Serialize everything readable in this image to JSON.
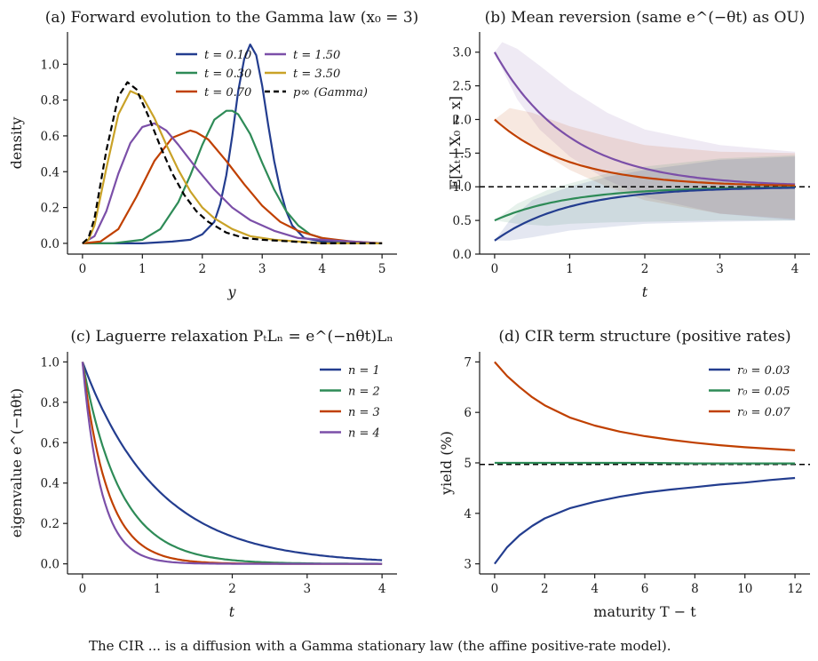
{
  "figure": {
    "caption": "The CIR ... is a diffusion with a Gamma stationary law (the affine positive-rate model)."
  },
  "chart_data": [
    {
      "id": "a",
      "type": "line",
      "title": "(a) Forward evolution to the Gamma law (x₀ = 3)",
      "xlabel": "y",
      "ylabel": "density",
      "xlim": [
        -0.25,
        5.25
      ],
      "ylim": [
        -0.06,
        1.18
      ],
      "xticks": [
        0,
        1,
        2,
        3,
        4,
        5
      ],
      "yticks": [
        0.0,
        0.2,
        0.4,
        0.6,
        0.8,
        1.0
      ],
      "xtick_labels": [
        "0",
        "1",
        "2",
        "3",
        "4",
        "5"
      ],
      "ytick_labels": [
        "0.0",
        "0.2",
        "0.4",
        "0.6",
        "0.8",
        "1.0"
      ],
      "grid": false,
      "legend_position": "top-right",
      "series": [
        {
          "name": "t = 0.10",
          "color": "#233d8f",
          "style": "solid",
          "x": [
            0,
            1,
            1.5,
            1.8,
            2.0,
            2.2,
            2.3,
            2.4,
            2.5,
            2.6,
            2.7,
            2.8,
            2.9,
            3.0,
            3.1,
            3.2,
            3.3,
            3.4,
            3.5,
            3.7,
            4.0,
            4.5,
            5.0
          ],
          "y": [
            0,
            0,
            0.01,
            0.02,
            0.05,
            0.12,
            0.22,
            0.38,
            0.6,
            0.85,
            1.03,
            1.11,
            1.05,
            0.88,
            0.66,
            0.46,
            0.3,
            0.18,
            0.1,
            0.03,
            0.01,
            0,
            0
          ]
        },
        {
          "name": "t = 0.30",
          "color": "#2e8b57",
          "style": "solid",
          "x": [
            0,
            0.5,
            1.0,
            1.3,
            1.6,
            1.8,
            2.0,
            2.2,
            2.4,
            2.5,
            2.6,
            2.8,
            3.0,
            3.2,
            3.4,
            3.6,
            3.8,
            4.0,
            4.3,
            4.6,
            5.0
          ],
          "y": [
            0,
            0,
            0.02,
            0.08,
            0.23,
            0.38,
            0.55,
            0.69,
            0.74,
            0.74,
            0.72,
            0.61,
            0.45,
            0.3,
            0.18,
            0.1,
            0.05,
            0.03,
            0.01,
            0,
            0
          ]
        },
        {
          "name": "t = 0.70",
          "color": "#c04000",
          "style": "solid",
          "x": [
            0,
            0.3,
            0.6,
            0.9,
            1.2,
            1.5,
            1.8,
            1.9,
            2.1,
            2.4,
            2.7,
            3.0,
            3.3,
            3.6,
            4.0,
            4.5,
            5.0
          ],
          "y": [
            0,
            0.01,
            0.08,
            0.26,
            0.46,
            0.59,
            0.63,
            0.62,
            0.58,
            0.46,
            0.33,
            0.21,
            0.12,
            0.07,
            0.03,
            0.01,
            0
          ]
        },
        {
          "name": "t = 1.50",
          "color": "#7b4fa8",
          "style": "solid",
          "x": [
            0,
            0.2,
            0.4,
            0.6,
            0.8,
            1.0,
            1.2,
            1.4,
            1.6,
            1.9,
            2.2,
            2.5,
            2.8,
            3.2,
            3.6,
            4.0,
            4.5,
            5.0
          ],
          "y": [
            0,
            0.04,
            0.18,
            0.39,
            0.56,
            0.65,
            0.67,
            0.63,
            0.55,
            0.42,
            0.3,
            0.2,
            0.13,
            0.07,
            0.03,
            0.02,
            0.01,
            0
          ]
        },
        {
          "name": "t = 3.50",
          "color": "#c9a227",
          "style": "solid",
          "x": [
            0,
            0.1,
            0.2,
            0.4,
            0.6,
            0.8,
            1.0,
            1.2,
            1.4,
            1.6,
            1.8,
            2.0,
            2.2,
            2.5,
            2.8,
            3.2,
            3.6,
            4.0,
            4.5,
            5.0
          ],
          "y": [
            0,
            0.02,
            0.1,
            0.42,
            0.72,
            0.85,
            0.82,
            0.7,
            0.55,
            0.41,
            0.29,
            0.2,
            0.14,
            0.08,
            0.04,
            0.02,
            0.01,
            0,
            0,
            0
          ]
        },
        {
          "name": "p∞ (Gamma)",
          "color": "#000000",
          "style": "dashed",
          "x": [
            0,
            0.1,
            0.2,
            0.4,
            0.6,
            0.75,
            0.9,
            1.1,
            1.3,
            1.5,
            1.7,
            1.9,
            2.1,
            2.4,
            2.7,
            3.0,
            3.5,
            4.0,
            4.5,
            5.0
          ],
          "y": [
            0,
            0.03,
            0.14,
            0.52,
            0.82,
            0.9,
            0.86,
            0.71,
            0.54,
            0.39,
            0.27,
            0.18,
            0.12,
            0.06,
            0.03,
            0.02,
            0.01,
            0,
            0,
            0
          ]
        }
      ]
    },
    {
      "id": "b",
      "type": "line",
      "title": "(b) Mean reversion (same e^(−θt) as OU)",
      "xlabel": "t",
      "ylabel": "𝔼[Xₜ | X₀ = x]",
      "xlim": [
        -0.2,
        4.2
      ],
      "ylim": [
        0.0,
        3.3
      ],
      "xticks": [
        0,
        1,
        2,
        3,
        4
      ],
      "yticks": [
        0.0,
        0.5,
        1.0,
        1.5,
        2.0,
        2.5,
        3.0
      ],
      "xtick_labels": [
        "0",
        "1",
        "2",
        "3",
        "4"
      ],
      "ytick_labels": [
        "0.0",
        "0.5",
        "1.0",
        "1.5",
        "2.0",
        "2.5",
        "3.0"
      ],
      "grid": false,
      "legend_position": "none",
      "reference_line": {
        "y": 1.0,
        "style": "dashed",
        "color": "#000000"
      },
      "series": [
        {
          "color": "#7b4fa8",
          "x0": 3.0,
          "theta": 1.0,
          "mean": 1.0,
          "band": {
            "t": [
              0,
              0.1,
              0.3,
              0.6,
              1.0,
              1.5,
              2.0,
              3.0,
              4.0
            ],
            "lower": [
              3.0,
              2.75,
              2.3,
              1.85,
              1.45,
              1.1,
              0.85,
              0.6,
              0.5
            ],
            "upper": [
              3.0,
              3.15,
              3.05,
              2.8,
              2.45,
              2.1,
              1.85,
              1.62,
              1.52
            ]
          }
        },
        {
          "color": "#c04000",
          "x0": 2.0,
          "theta": 1.0,
          "mean": 1.0,
          "band": {
            "t": [
              0,
              0.2,
              0.5,
              1.0,
              1.5,
              2.0,
              3.0,
              4.0
            ],
            "lower": [
              2.0,
              1.85,
              1.6,
              1.25,
              1.0,
              0.8,
              0.6,
              0.52
            ],
            "upper": [
              2.0,
              2.17,
              2.1,
              1.9,
              1.75,
              1.62,
              1.52,
              1.5
            ]
          }
        },
        {
          "color": "#2e8b57",
          "x0": 0.5,
          "theta": 1.0,
          "mean": 1.0,
          "band": {
            "t": [
              0,
              0.3,
              0.7,
              1.0,
              1.5,
              2.0,
              3.0,
              4.0
            ],
            "lower": [
              0.5,
              0.45,
              0.42,
              0.45,
              0.47,
              0.48,
              0.5,
              0.5
            ],
            "upper": [
              0.5,
              0.75,
              0.95,
              1.05,
              1.2,
              1.3,
              1.42,
              1.47
            ]
          }
        },
        {
          "color": "#233d8f",
          "x0": 0.2,
          "theta": 1.0,
          "mean": 1.0,
          "band": {
            "t": [
              0,
              0.2,
              0.5,
              1.0,
              1.5,
              2.0,
              3.0,
              4.0
            ],
            "lower": [
              0.2,
              0.2,
              0.25,
              0.35,
              0.4,
              0.45,
              0.48,
              0.5
            ],
            "upper": [
              0.2,
              0.5,
              0.8,
              1.0,
              1.15,
              1.25,
              1.4,
              1.45
            ]
          }
        }
      ]
    },
    {
      "id": "c",
      "type": "line",
      "title": "(c) Laguerre relaxation PₜLₙ = e^(−nθt)Lₙ",
      "xlabel": "t",
      "ylabel": "eigenvalue e^(−nθt)",
      "xlim": [
        -0.2,
        4.2
      ],
      "ylim": [
        -0.05,
        1.05
      ],
      "xticks": [
        0,
        1,
        2,
        3,
        4
      ],
      "yticks": [
        0.0,
        0.2,
        0.4,
        0.6,
        0.8,
        1.0
      ],
      "xtick_labels": [
        "0",
        "1",
        "2",
        "3",
        "4"
      ],
      "ytick_labels": [
        "0.0",
        "0.2",
        "0.4",
        "0.6",
        "0.8",
        "1.0"
      ],
      "grid": false,
      "legend_position": "top-right",
      "theta": 1.0,
      "series": [
        {
          "name": "n = 1",
          "n": 1,
          "color": "#233d8f"
        },
        {
          "name": "n = 2",
          "n": 2,
          "color": "#2e8b57"
        },
        {
          "name": "n = 3",
          "n": 3,
          "color": "#c04000"
        },
        {
          "name": "n = 4",
          "n": 4,
          "color": "#7b4fa8"
        }
      ]
    },
    {
      "id": "d",
      "type": "line",
      "title": "(d) CIR term structure (positive rates)",
      "xlabel": "maturity T − t",
      "ylabel": "yield (%)",
      "xlim": [
        -0.6,
        12.6
      ],
      "ylim": [
        2.8,
        7.2
      ],
      "xticks": [
        0,
        2,
        4,
        6,
        8,
        10,
        12
      ],
      "yticks": [
        3,
        4,
        5,
        6,
        7
      ],
      "xtick_labels": [
        "0",
        "2",
        "4",
        "6",
        "8",
        "10",
        "12"
      ],
      "ytick_labels": [
        "3",
        "4",
        "5",
        "6",
        "7"
      ],
      "grid": false,
      "legend_position": "top-right",
      "reference_line": {
        "y": 4.97,
        "style": "dashed",
        "color": "#000000"
      },
      "series": [
        {
          "name": "r₀ = 0.03",
          "color": "#233d8f",
          "x": [
            0,
            0.5,
            1,
            1.5,
            2,
            3,
            4,
            5,
            6,
            7,
            8,
            9,
            10,
            11,
            12
          ],
          "y": [
            3.0,
            3.33,
            3.57,
            3.75,
            3.9,
            4.1,
            4.23,
            4.33,
            4.41,
            4.47,
            4.52,
            4.57,
            4.61,
            4.66,
            4.7
          ]
        },
        {
          "name": "r₀ = 0.05",
          "color": "#2e8b57",
          "x": [
            0,
            2,
            4,
            6,
            8,
            10,
            12
          ],
          "y": [
            5.0,
            5.0,
            5.0,
            5.0,
            4.99,
            4.99,
            4.99
          ]
        },
        {
          "name": "r₀ = 0.07",
          "color": "#c04000",
          "x": [
            0,
            0.5,
            1,
            1.5,
            2,
            3,
            4,
            5,
            6,
            7,
            8,
            9,
            10,
            11,
            12
          ],
          "y": [
            7.0,
            6.72,
            6.5,
            6.3,
            6.14,
            5.9,
            5.74,
            5.62,
            5.53,
            5.46,
            5.4,
            5.35,
            5.31,
            5.28,
            5.25
          ]
        }
      ]
    }
  ]
}
